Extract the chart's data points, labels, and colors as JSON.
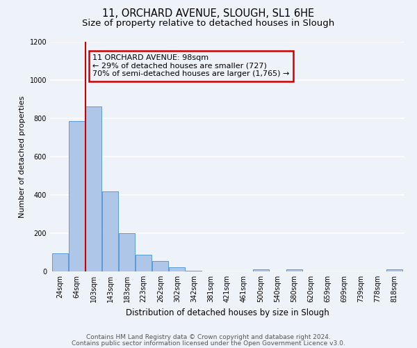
{
  "title": "11, ORCHARD AVENUE, SLOUGH, SL1 6HE",
  "subtitle": "Size of property relative to detached houses in Slough",
  "xlabel": "Distribution of detached houses by size in Slough",
  "ylabel": "Number of detached properties",
  "bin_labels": [
    "24sqm",
    "64sqm",
    "103sqm",
    "143sqm",
    "183sqm",
    "223sqm",
    "262sqm",
    "302sqm",
    "342sqm",
    "381sqm",
    "421sqm",
    "461sqm",
    "500sqm",
    "540sqm",
    "580sqm",
    "620sqm",
    "659sqm",
    "699sqm",
    "739sqm",
    "778sqm",
    "818sqm"
  ],
  "bar_values": [
    95,
    785,
    863,
    420,
    200,
    87,
    53,
    22,
    5,
    0,
    0,
    0,
    12,
    0,
    12,
    0,
    0,
    0,
    0,
    0,
    12
  ],
  "bar_color": "#aec6e8",
  "bar_edge_color": "#5b9bd5",
  "vline_color": "#cc0000",
  "annotation_text": "11 ORCHARD AVENUE: 98sqm\n← 29% of detached houses are smaller (727)\n70% of semi-detached houses are larger (1,765) →",
  "annotation_box_edge": "#cc0000",
  "ylim": [
    0,
    1200
  ],
  "yticks": [
    0,
    200,
    400,
    600,
    800,
    1000,
    1200
  ],
  "footer_line1": "Contains HM Land Registry data © Crown copyright and database right 2024.",
  "footer_line2": "Contains public sector information licensed under the Open Government Licence v3.0.",
  "background_color": "#eef2f9",
  "grid_color": "#ffffff",
  "title_fontsize": 10.5,
  "subtitle_fontsize": 9.5,
  "xlabel_fontsize": 8.5,
  "ylabel_fontsize": 8,
  "footer_fontsize": 6.5,
  "tick_fontsize": 7,
  "annot_fontsize": 8,
  "vline_x": 1.5
}
